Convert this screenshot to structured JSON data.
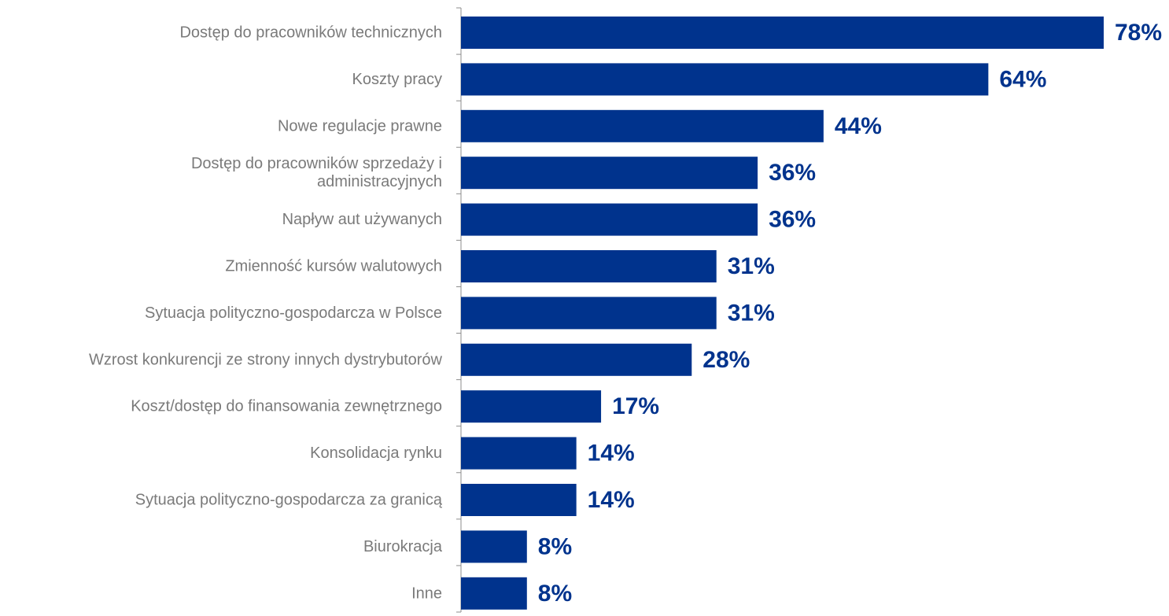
{
  "chart_data": {
    "type": "bar",
    "orientation": "horizontal",
    "categories": [
      [
        "Dostęp do pracowników technicznych"
      ],
      [
        "Koszty pracy"
      ],
      [
        "Nowe regulacje prawne"
      ],
      [
        "Dostęp do pracowników sprzedaży i",
        "administracyjnych"
      ],
      [
        "Napływ aut używanych"
      ],
      [
        "Zmienność kursów walutowych"
      ],
      [
        "Sytuacja polityczno-gospodarcza w Polsce"
      ],
      [
        "Wzrost konkurencji ze strony innych dystrybutorów"
      ],
      [
        "Koszt/dostęp do finansowania zewnętrznego"
      ],
      [
        "Konsolidacja rynku"
      ],
      [
        "Sytuacja polityczno-gospodarcza za granicą"
      ],
      [
        "Biurokracja"
      ],
      [
        "Inne"
      ]
    ],
    "values": [
      78,
      64,
      44,
      36,
      36,
      31,
      31,
      28,
      17,
      14,
      14,
      8,
      8
    ],
    "value_labels": [
      "78%",
      "64%",
      "44%",
      "36%",
      "36%",
      "31%",
      "31%",
      "28%",
      "17%",
      "14%",
      "14%",
      "8%",
      "8%"
    ],
    "unit": "%",
    "xlim": [
      0,
      78
    ],
    "grid": false,
    "legend": "none",
    "colors": {
      "bar": "#00338d",
      "value_label": "#00338d",
      "category_label": "#7a7a7a",
      "axis": "#8c8c8c"
    }
  }
}
